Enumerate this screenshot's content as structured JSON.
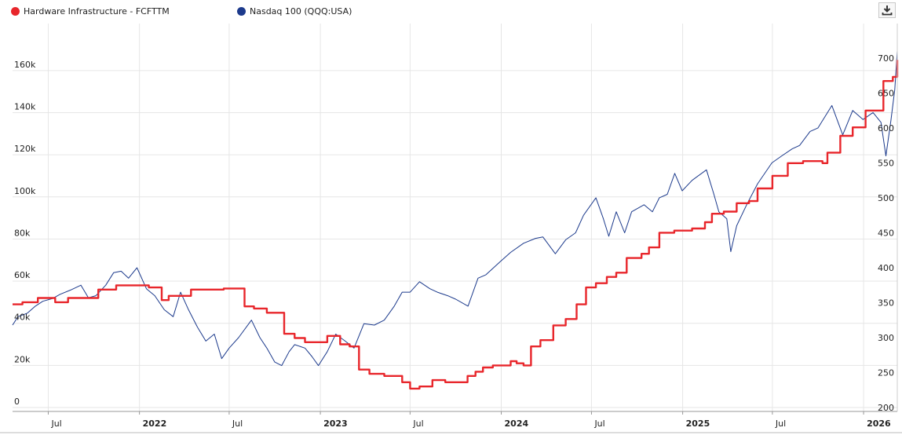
{
  "legend": [
    {
      "label": "Hardware Infrastructure - FCFTTM",
      "color": "#e8262b"
    },
    {
      "label": "Nasdaq 100 (QQQ:USA)",
      "color": "#1c3a8c"
    }
  ],
  "download_icon": "download-icon",
  "chart_data": {
    "type": "line",
    "grid": true,
    "x_range": [
      "2021-04-20",
      "2026-03-10"
    ],
    "x_ticks": [
      {
        "date": "2021-07-01",
        "label": "Jul"
      },
      {
        "date": "2022-01-01",
        "label": "2022"
      },
      {
        "date": "2022-07-01",
        "label": "Jul"
      },
      {
        "date": "2023-01-01",
        "label": "2023"
      },
      {
        "date": "2023-07-01",
        "label": "Jul"
      },
      {
        "date": "2024-01-01",
        "label": "2024"
      },
      {
        "date": "2024-07-01",
        "label": "Jul"
      },
      {
        "date": "2025-01-01",
        "label": "2025"
      },
      {
        "date": "2025-07-01",
        "label": "Jul"
      },
      {
        "date": "2026-01-01",
        "label": "2026"
      }
    ],
    "y_left": {
      "range": [
        0,
        170000
      ],
      "ticks": [
        "0",
        "20k",
        "40k",
        "60k",
        "80k",
        "100k",
        "120k",
        "140k",
        "160k"
      ],
      "tick_values": [
        0,
        20000,
        40000,
        60000,
        80000,
        100000,
        120000,
        140000,
        160000
      ]
    },
    "y_right": {
      "range": [
        200,
        710
      ],
      "ticks": [
        "200",
        "250",
        "300",
        "350",
        "400",
        "450",
        "500",
        "550",
        "600",
        "650",
        "700"
      ],
      "tick_values": [
        200,
        250,
        300,
        350,
        400,
        450,
        500,
        550,
        600,
        650,
        700
      ]
    },
    "series": [
      {
        "name": "Hardware Infrastructure - FCFTTM",
        "axis": "left",
        "color": "#e8262b",
        "step": true,
        "points": [
          [
            "2021-04-20",
            49000
          ],
          [
            "2021-05-10",
            50000
          ],
          [
            "2021-06-10",
            52000
          ],
          [
            "2021-07-15",
            50000
          ],
          [
            "2021-08-10",
            52000
          ],
          [
            "2021-10-10",
            56000
          ],
          [
            "2021-11-15",
            58000
          ],
          [
            "2022-01-20",
            57000
          ],
          [
            "2022-02-15",
            51000
          ],
          [
            "2022-03-01",
            53000
          ],
          [
            "2022-04-15",
            56000
          ],
          [
            "2022-06-20",
            56500
          ],
          [
            "2022-08-01",
            48000
          ],
          [
            "2022-08-20",
            47000
          ],
          [
            "2022-09-15",
            45000
          ],
          [
            "2022-10-15",
            45000
          ],
          [
            "2022-10-20",
            35000
          ],
          [
            "2022-11-10",
            33000
          ],
          [
            "2022-12-01",
            31000
          ],
          [
            "2023-01-15",
            34000
          ],
          [
            "2023-02-10",
            30000
          ],
          [
            "2023-03-01",
            29000
          ],
          [
            "2023-03-20",
            18000
          ],
          [
            "2023-04-10",
            16000
          ],
          [
            "2023-05-10",
            15000
          ],
          [
            "2023-06-15",
            12000
          ],
          [
            "2023-07-01",
            9000
          ],
          [
            "2023-07-20",
            10000
          ],
          [
            "2023-08-15",
            13000
          ],
          [
            "2023-09-10",
            12000
          ],
          [
            "2023-10-10",
            12000
          ],
          [
            "2023-10-25",
            15000
          ],
          [
            "2023-11-10",
            17000
          ],
          [
            "2023-11-25",
            19000
          ],
          [
            "2023-12-15",
            20000
          ],
          [
            "2024-01-10",
            20000
          ],
          [
            "2024-01-20",
            22000
          ],
          [
            "2024-02-01",
            21000
          ],
          [
            "2024-02-15",
            20000
          ],
          [
            "2024-03-01",
            29000
          ],
          [
            "2024-03-20",
            32000
          ],
          [
            "2024-04-15",
            39000
          ],
          [
            "2024-05-10",
            42000
          ],
          [
            "2024-06-01",
            49000
          ],
          [
            "2024-06-20",
            57000
          ],
          [
            "2024-07-10",
            59000
          ],
          [
            "2024-08-01",
            62000
          ],
          [
            "2024-08-20",
            64000
          ],
          [
            "2024-09-10",
            71000
          ],
          [
            "2024-10-10",
            73000
          ],
          [
            "2024-10-25",
            76000
          ],
          [
            "2024-11-15",
            83000
          ],
          [
            "2024-12-15",
            84000
          ],
          [
            "2025-01-20",
            85000
          ],
          [
            "2025-02-15",
            88000
          ],
          [
            "2025-03-01",
            92000
          ],
          [
            "2025-03-25",
            93000
          ],
          [
            "2025-04-20",
            97000
          ],
          [
            "2025-05-15",
            98000
          ],
          [
            "2025-06-01",
            104000
          ],
          [
            "2025-07-01",
            110000
          ],
          [
            "2025-08-01",
            116000
          ],
          [
            "2025-09-01",
            117000
          ],
          [
            "2025-10-10",
            116000
          ],
          [
            "2025-10-20",
            121000
          ],
          [
            "2025-11-15",
            129000
          ],
          [
            "2025-12-10",
            133000
          ],
          [
            "2026-01-05",
            141000
          ],
          [
            "2026-02-10",
            155000
          ],
          [
            "2026-03-01",
            157000
          ],
          [
            "2026-03-10",
            165000
          ]
        ]
      },
      {
        "name": "Nasdaq 100 (QQQ:USA)",
        "axis": "right",
        "color": "#1c3a8c",
        "step": false,
        "points": [
          [
            "2021-04-20",
            318
          ],
          [
            "2021-05-01",
            330
          ],
          [
            "2021-05-20",
            335
          ],
          [
            "2021-06-05",
            345
          ],
          [
            "2021-06-20",
            352
          ],
          [
            "2021-07-10",
            356
          ],
          [
            "2021-07-25",
            362
          ],
          [
            "2021-08-15",
            368
          ],
          [
            "2021-09-05",
            375
          ],
          [
            "2021-09-20",
            357
          ],
          [
            "2021-10-05",
            360
          ],
          [
            "2021-10-25",
            375
          ],
          [
            "2021-11-10",
            393
          ],
          [
            "2021-11-25",
            395
          ],
          [
            "2021-12-10",
            385
          ],
          [
            "2021-12-27",
            400
          ],
          [
            "2022-01-15",
            370
          ],
          [
            "2022-02-01",
            360
          ],
          [
            "2022-02-20",
            340
          ],
          [
            "2022-03-10",
            330
          ],
          [
            "2022-03-25",
            365
          ],
          [
            "2022-04-10",
            340
          ],
          [
            "2022-04-28",
            315
          ],
          [
            "2022-05-15",
            295
          ],
          [
            "2022-06-01",
            305
          ],
          [
            "2022-06-16",
            270
          ],
          [
            "2022-07-01",
            285
          ],
          [
            "2022-07-20",
            300
          ],
          [
            "2022-08-15",
            325
          ],
          [
            "2022-09-01",
            300
          ],
          [
            "2022-09-15",
            285
          ],
          [
            "2022-10-01",
            265
          ],
          [
            "2022-10-15",
            260
          ],
          [
            "2022-10-30",
            280
          ],
          [
            "2022-11-10",
            290
          ],
          [
            "2022-12-01",
            285
          ],
          [
            "2022-12-15",
            273
          ],
          [
            "2022-12-28",
            260
          ],
          [
            "2023-01-15",
            280
          ],
          [
            "2023-02-01",
            305
          ],
          [
            "2023-02-20",
            295
          ],
          [
            "2023-03-10",
            285
          ],
          [
            "2023-03-30",
            320
          ],
          [
            "2023-04-20",
            318
          ],
          [
            "2023-05-10",
            325
          ],
          [
            "2023-05-30",
            345
          ],
          [
            "2023-06-15",
            365
          ],
          [
            "2023-07-01",
            365
          ],
          [
            "2023-07-20",
            380
          ],
          [
            "2023-08-10",
            370
          ],
          [
            "2023-08-25",
            365
          ],
          [
            "2023-09-15",
            360
          ],
          [
            "2023-10-01",
            355
          ],
          [
            "2023-10-26",
            345
          ],
          [
            "2023-11-15",
            385
          ],
          [
            "2023-12-01",
            390
          ],
          [
            "2023-12-29",
            408
          ],
          [
            "2024-01-20",
            422
          ],
          [
            "2024-02-15",
            435
          ],
          [
            "2024-03-10",
            442
          ],
          [
            "2024-03-25",
            444
          ],
          [
            "2024-04-19",
            420
          ],
          [
            "2024-05-10",
            440
          ],
          [
            "2024-05-30",
            450
          ],
          [
            "2024-06-15",
            475
          ],
          [
            "2024-07-10",
            500
          ],
          [
            "2024-07-25",
            470
          ],
          [
            "2024-08-05",
            445
          ],
          [
            "2024-08-20",
            480
          ],
          [
            "2024-09-06",
            450
          ],
          [
            "2024-09-20",
            480
          ],
          [
            "2024-10-15",
            490
          ],
          [
            "2024-11-01",
            480
          ],
          [
            "2024-11-15",
            500
          ],
          [
            "2024-12-01",
            505
          ],
          [
            "2024-12-16",
            535
          ],
          [
            "2024-12-31",
            510
          ],
          [
            "2025-01-20",
            525
          ],
          [
            "2025-02-18",
            540
          ],
          [
            "2025-03-05",
            505
          ],
          [
            "2025-03-15",
            480
          ],
          [
            "2025-03-31",
            470
          ],
          [
            "2025-04-08",
            423
          ],
          [
            "2025-04-20",
            460
          ],
          [
            "2025-05-10",
            490
          ],
          [
            "2025-06-01",
            520
          ],
          [
            "2025-06-30",
            550
          ],
          [
            "2025-07-20",
            560
          ],
          [
            "2025-08-10",
            570
          ],
          [
            "2025-08-25",
            575
          ],
          [
            "2025-09-15",
            595
          ],
          [
            "2025-10-01",
            600
          ],
          [
            "2025-10-29",
            632
          ],
          [
            "2025-11-20",
            590
          ],
          [
            "2025-12-10",
            625
          ],
          [
            "2025-12-31",
            612
          ],
          [
            "2026-01-20",
            622
          ],
          [
            "2026-02-05",
            608
          ],
          [
            "2026-02-15",
            560
          ],
          [
            "2026-02-25",
            610
          ],
          [
            "2026-03-05",
            655
          ],
          [
            "2026-03-10",
            710
          ]
        ]
      }
    ]
  }
}
